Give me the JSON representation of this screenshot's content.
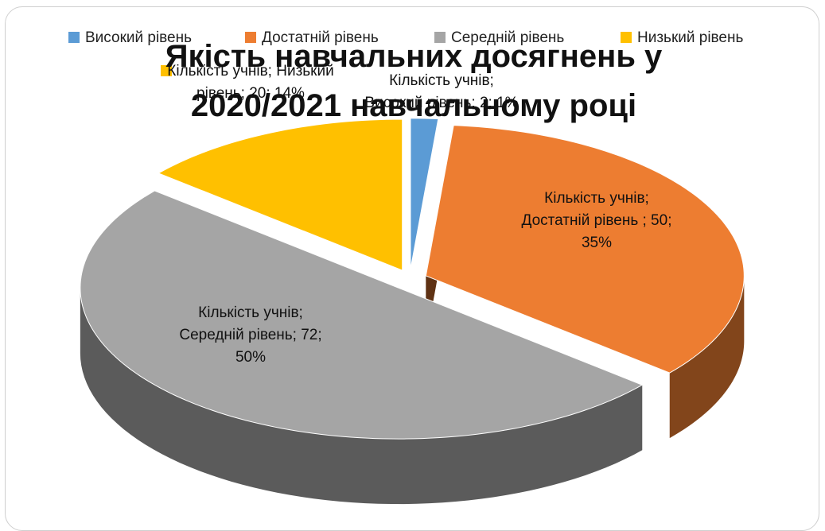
{
  "chart_data": {
    "type": "pie",
    "title": "Якість навчальних досягнень у 2020/2021  навчальному році",
    "series_name": "Кількість учнів",
    "categories": [
      "Високий рівень",
      "Достатній рівень",
      "Середній рівень",
      "Низький рівень"
    ],
    "values": [
      2,
      50,
      72,
      20
    ],
    "value_labels": [
      "Кількість учнів; Високий рівень; 2; 1%",
      "Кількість учнів; Достатній рівень ; 50; 35%",
      "Кількість учнів; Середній рівень; 72; 50%",
      "Кількість учнів; Низький рівень; 20; 14%"
    ],
    "colors": [
      "#5b9bd5",
      "#ed7d31",
      "#a5a5a5",
      "#ffc000"
    ],
    "legend": "top"
  }
}
